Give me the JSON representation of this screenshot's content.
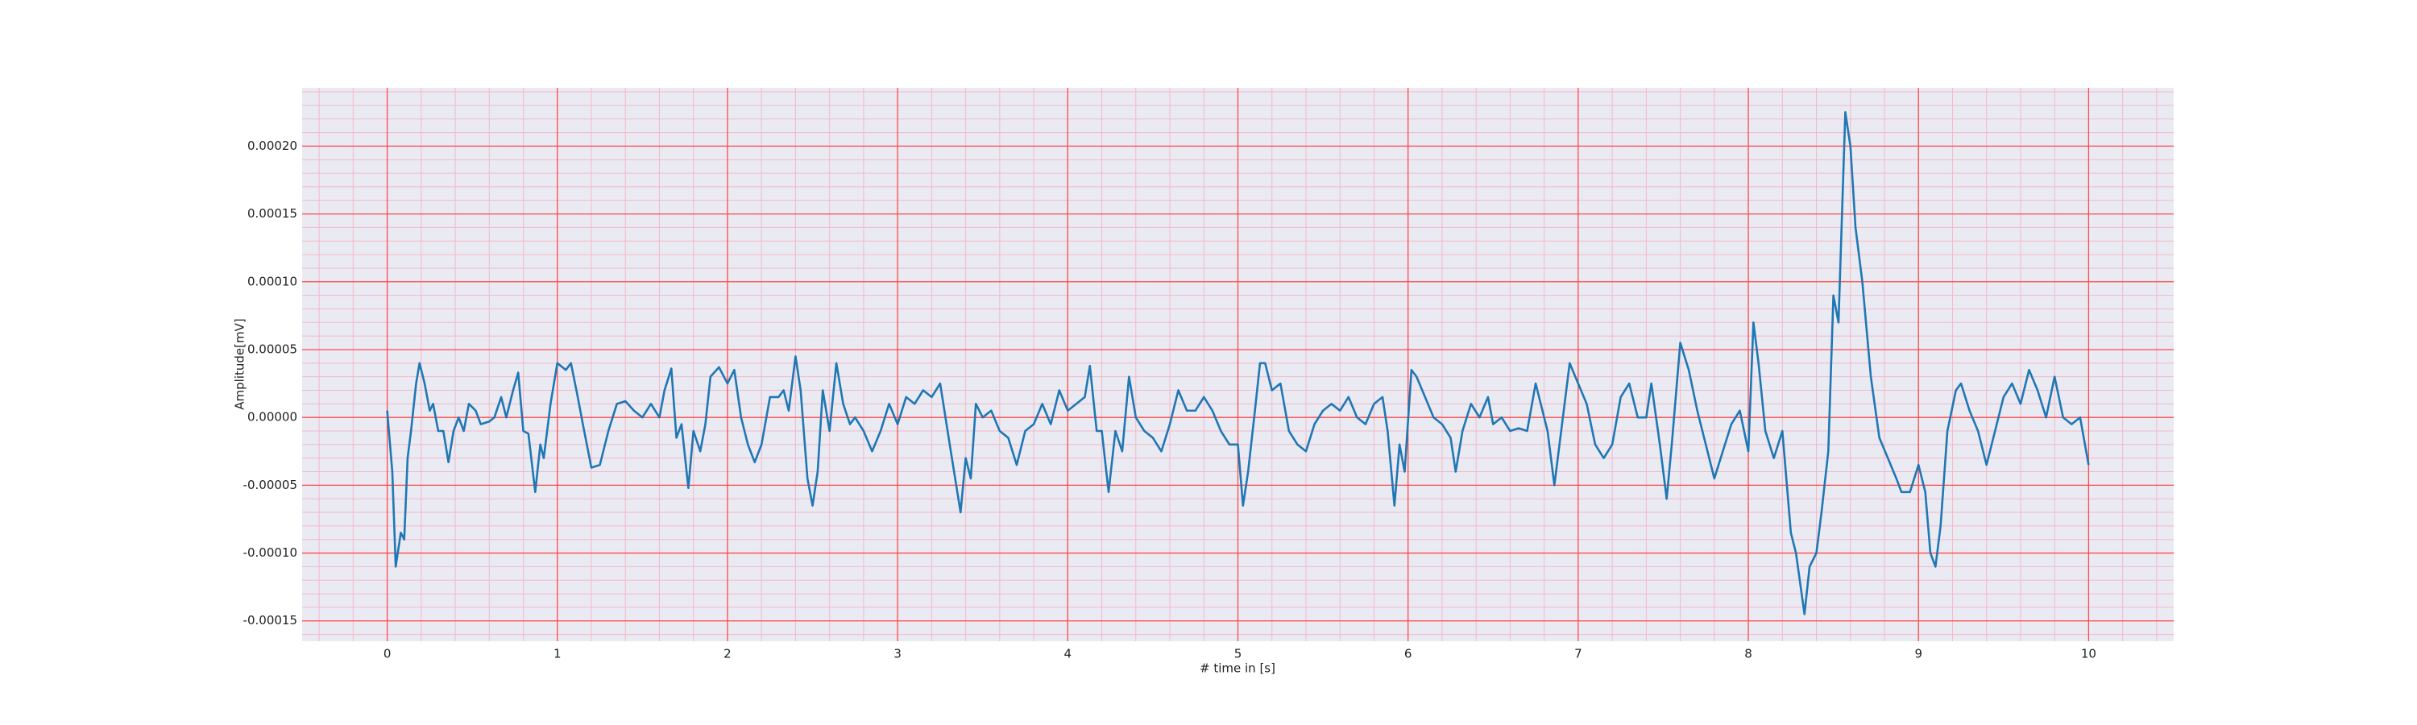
{
  "chart_data": {
    "type": "line",
    "xlabel": "# time in [s]",
    "ylabel": "Amplitude[mV]",
    "xlim": [
      -0.5,
      10.5
    ],
    "ylim": [
      -0.000165,
      0.000243
    ],
    "xticks": [
      0,
      1,
      2,
      3,
      4,
      5,
      6,
      7,
      8,
      9,
      10
    ],
    "yticks": [
      {
        "value": -0.00015,
        "label": "-0.00015"
      },
      {
        "value": -0.0001,
        "label": "-0.00010"
      },
      {
        "value": -5e-05,
        "label": "-0.00005"
      },
      {
        "value": 0,
        "label": "0.00000"
      },
      {
        "value": 5e-05,
        "label": "0.00005"
      },
      {
        "value": 0.0001,
        "label": "0.00010"
      },
      {
        "value": 0.00015,
        "label": "0.00015"
      },
      {
        "value": 0.0002,
        "label": "0.00020"
      }
    ],
    "grid": true,
    "minor_grid": true,
    "grid_color": "#ff4a4a",
    "minor_grid_color": "#f4b8c8",
    "background": "#eaeaf2",
    "series": [
      {
        "color": "#1f77b4",
        "x": [
          0,
          0.03,
          0.05,
          0.08,
          0.1,
          0.12,
          0.14,
          0.17,
          0.19,
          0.22,
          0.25,
          0.27,
          0.3,
          0.33,
          0.36,
          0.39,
          0.42,
          0.45,
          0.48,
          0.52,
          0.55,
          0.6,
          0.63,
          0.67,
          0.7,
          0.74,
          0.77,
          0.8,
          0.83,
          0.87,
          0.9,
          0.92,
          0.96,
          1.0,
          1.05,
          1.08,
          1.12,
          1.15,
          1.2,
          1.25,
          1.3,
          1.35,
          1.4,
          1.45,
          1.5,
          1.55,
          1.6,
          1.63,
          1.67,
          1.7,
          1.73,
          1.77,
          1.8,
          1.84,
          1.87,
          1.9,
          1.95,
          2.0,
          2.04,
          2.08,
          2.12,
          2.16,
          2.2,
          2.25,
          2.3,
          2.33,
          2.36,
          2.4,
          2.43,
          2.47,
          2.5,
          2.53,
          2.56,
          2.6,
          2.64,
          2.68,
          2.72,
          2.75,
          2.8,
          2.85,
          2.9,
          2.95,
          3.0,
          3.05,
          3.1,
          3.15,
          3.2,
          3.25,
          3.3,
          3.37,
          3.4,
          3.43,
          3.46,
          3.5,
          3.55,
          3.6,
          3.65,
          3.7,
          3.75,
          3.8,
          3.85,
          3.9,
          3.95,
          4.0,
          4.05,
          4.1,
          4.13,
          4.17,
          4.2,
          4.24,
          4.28,
          4.32,
          4.36,
          4.4,
          4.45,
          4.5,
          4.55,
          4.6,
          4.65,
          4.7,
          4.75,
          4.8,
          4.85,
          4.9,
          4.95,
          5.0,
          5.03,
          5.06,
          5.1,
          5.13,
          5.16,
          5.2,
          5.25,
          5.3,
          5.35,
          5.4,
          5.45,
          5.5,
          5.55,
          5.6,
          5.65,
          5.7,
          5.75,
          5.8,
          5.85,
          5.88,
          5.92,
          5.95,
          5.98,
          6.02,
          6.05,
          6.1,
          6.15,
          6.2,
          6.25,
          6.28,
          6.32,
          6.37,
          6.42,
          6.47,
          6.5,
          6.55,
          6.6,
          6.65,
          6.7,
          6.75,
          6.78,
          6.82,
          6.86,
          6.9,
          6.95,
          7.0,
          7.05,
          7.1,
          7.15,
          7.2,
          7.25,
          7.3,
          7.35,
          7.4,
          7.43,
          7.48,
          7.52,
          7.55,
          7.6,
          7.65,
          7.7,
          7.75,
          7.8,
          7.85,
          7.9,
          7.95,
          8.0,
          8.03,
          8.06,
          8.1,
          8.15,
          8.2,
          8.25,
          8.28,
          8.33,
          8.36,
          8.4,
          8.43,
          8.47,
          8.5,
          8.53,
          8.57,
          8.6,
          8.63,
          8.67,
          8.72,
          8.77,
          8.82,
          8.87,
          8.9,
          8.95,
          9.0,
          9.04,
          9.07,
          9.1,
          9.13,
          9.17,
          9.22,
          9.25,
          9.3,
          9.35,
          9.4,
          9.45,
          9.5,
          9.55,
          9.6,
          9.65,
          9.7,
          9.75,
          9.8,
          9.85,
          9.9,
          9.95,
          10.0
        ],
        "values": [
          5e-06,
          -4e-05,
          -0.00011,
          -8.5e-05,
          -9e-05,
          -3e-05,
          -1e-05,
          2.5e-05,
          4e-05,
          2.5e-05,
          5e-06,
          1e-05,
          -1e-05,
          -1e-05,
          -3.3e-05,
          -1e-05,
          0,
          -1e-05,
          1e-05,
          5e-06,
          -5e-06,
          -3e-06,
          0,
          1.5e-05,
          0,
          2e-05,
          3.3e-05,
          -1e-05,
          -1.2e-05,
          -5.5e-05,
          -2e-05,
          -3e-05,
          1e-05,
          4e-05,
          3.5e-05,
          4e-05,
          1.5e-05,
          -5e-06,
          -3.7e-05,
          -3.5e-05,
          -1e-05,
          1e-05,
          1.2e-05,
          5e-06,
          0,
          1e-05,
          0,
          2e-05,
          3.6e-05,
          -1.5e-05,
          -5e-06,
          -5.2e-05,
          -1e-05,
          -2.5e-05,
          -5e-06,
          3e-05,
          3.7e-05,
          2.5e-05,
          3.5e-05,
          0,
          -2e-05,
          -3.3e-05,
          -2e-05,
          1.5e-05,
          1.5e-05,
          2e-05,
          5e-06,
          4.5e-05,
          2e-05,
          -4.5e-05,
          -6.5e-05,
          -4e-05,
          2e-05,
          -1e-05,
          4e-05,
          1e-05,
          -5e-06,
          0,
          -1e-05,
          -2.5e-05,
          -1e-05,
          1e-05,
          -5e-06,
          1.5e-05,
          1e-05,
          2e-05,
          1.5e-05,
          2.5e-05,
          -1.5e-05,
          -7e-05,
          -3e-05,
          -4.5e-05,
          1e-05,
          0,
          5e-06,
          -1e-05,
          -1.5e-05,
          -3.5e-05,
          -1e-05,
          -5e-06,
          1e-05,
          -5e-06,
          2e-05,
          5e-06,
          1e-05,
          1.5e-05,
          3.8e-05,
          -1e-05,
          -1e-05,
          -5.5e-05,
          -1e-05,
          -2.5e-05,
          3e-05,
          0,
          -1e-05,
          -1.5e-05,
          -2.5e-05,
          -5e-06,
          2e-05,
          5e-06,
          5e-06,
          1.5e-05,
          5e-06,
          -1e-05,
          -2e-05,
          -2e-05,
          -6.5e-05,
          -4e-05,
          5e-06,
          4e-05,
          4e-05,
          2e-05,
          2.5e-05,
          -1e-05,
          -2e-05,
          -2.5e-05,
          -5e-06,
          5e-06,
          1e-05,
          5e-06,
          1.5e-05,
          0,
          -5e-06,
          1e-05,
          1.5e-05,
          -1e-05,
          -6.5e-05,
          -2e-05,
          -4e-05,
          3.5e-05,
          3e-05,
          1.5e-05,
          0,
          -5e-06,
          -1.5e-05,
          -4e-05,
          -1e-05,
          1e-05,
          0,
          1.5e-05,
          -5e-06,
          0,
          -1e-05,
          -8e-06,
          -1e-05,
          2.5e-05,
          1e-05,
          -1e-05,
          -5e-05,
          -1e-05,
          4e-05,
          2.5e-05,
          1e-05,
          -2e-05,
          -3e-05,
          -2e-05,
          1.5e-05,
          2.5e-05,
          0,
          0,
          2.5e-05,
          -2e-05,
          -6e-05,
          -2e-05,
          5.5e-05,
          3.5e-05,
          5e-06,
          -2e-05,
          -4.5e-05,
          -2.5e-05,
          -5e-06,
          5e-06,
          -2.5e-05,
          7e-05,
          4e-05,
          -1e-05,
          -3e-05,
          -1e-05,
          -8.5e-05,
          -0.0001,
          -0.000145,
          -0.00011,
          -0.0001,
          -7e-05,
          -2.5e-05,
          9e-05,
          7e-05,
          0.000225,
          0.0002,
          0.00014,
          0.0001,
          3e-05,
          -1.5e-05,
          -3e-05,
          -4.5e-05,
          -5.5e-05,
          -5.5e-05,
          -3.5e-05,
          -5.5e-05,
          -0.0001,
          -0.00011,
          -8e-05,
          -1e-05,
          2e-05,
          2.5e-05,
          5e-06,
          -1e-05,
          -3.5e-05,
          -1e-05,
          1.5e-05,
          2.5e-05,
          1e-05,
          3.5e-05,
          2e-05,
          0,
          3e-05,
          0,
          -5e-06,
          0,
          -3.5e-05
        ]
      }
    ]
  }
}
